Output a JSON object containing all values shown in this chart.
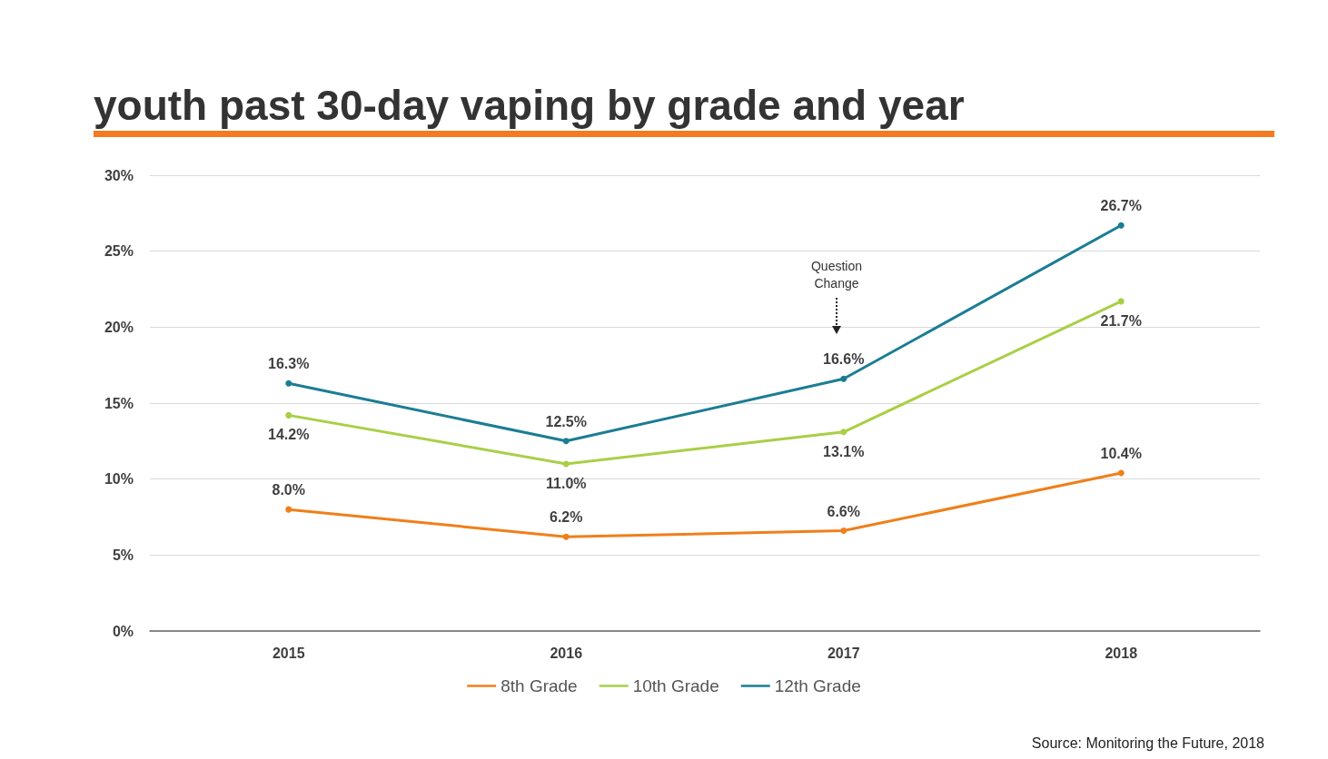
{
  "chart_data": {
    "type": "line",
    "title": "youth past 30-day vaping by grade and year",
    "categories": [
      "2015",
      "2016",
      "2017",
      "2018"
    ],
    "series": [
      {
        "name": "8th Grade",
        "color": "#f07f1a",
        "values": [
          8.0,
          6.2,
          6.6,
          10.4
        ],
        "value_labels": [
          "8.0%",
          "6.2%",
          "6.6%",
          "10.4%"
        ]
      },
      {
        "name": "10th Grade",
        "color": "#a9cf45",
        "values": [
          14.2,
          11.0,
          13.1,
          21.7
        ],
        "value_labels": [
          "14.2%",
          "11.0%",
          "13.1%",
          "21.7%"
        ]
      },
      {
        "name": "12th Grade",
        "color": "#1b7d93",
        "values": [
          16.3,
          12.5,
          16.6,
          26.7
        ],
        "value_labels": [
          "16.3%",
          "12.5%",
          "16.6%",
          "26.7%"
        ]
      }
    ],
    "ylim": [
      0,
      30
    ],
    "yticks": [
      {
        "value": 0,
        "label": "0%"
      },
      {
        "value": 5,
        "label": "5%"
      },
      {
        "value": 10,
        "label": "10%"
      },
      {
        "value": 15,
        "label": "15%"
      },
      {
        "value": 20,
        "label": "20%"
      },
      {
        "value": 25,
        "label": "25%"
      },
      {
        "value": 30,
        "label": "30%"
      }
    ],
    "grid": "y",
    "legend": "bottom",
    "marker": "circle",
    "line_style": "solid",
    "annotations": [
      "Question\nChange",
      "Source: Monitoring the Future, 2018"
    ]
  }
}
